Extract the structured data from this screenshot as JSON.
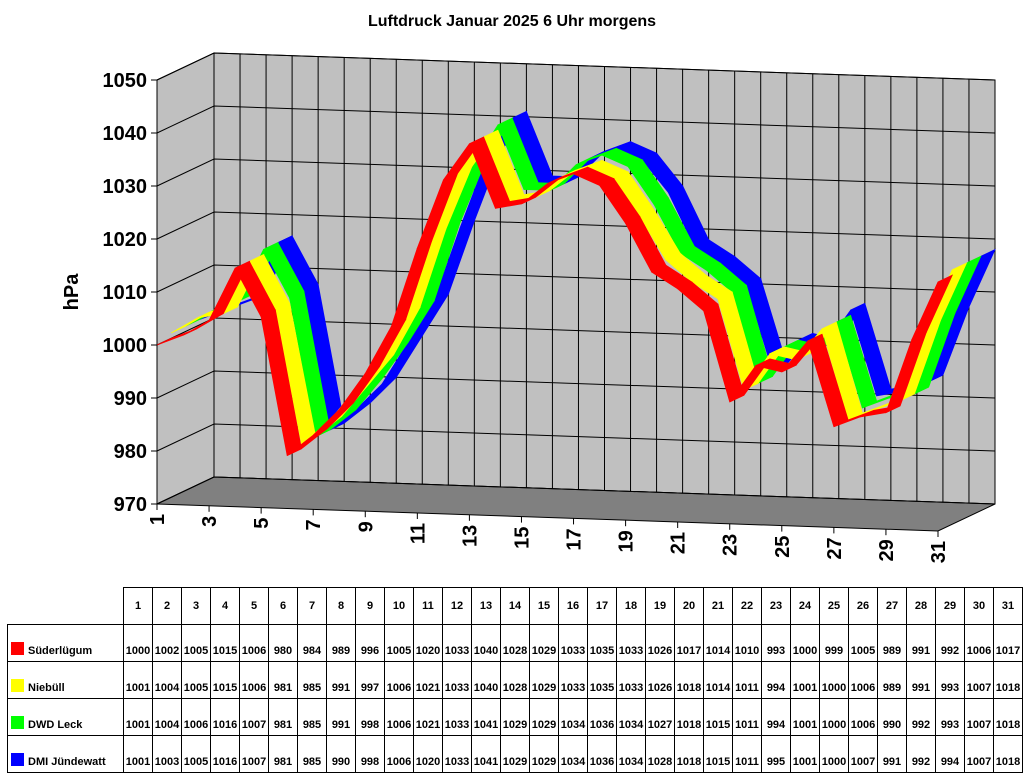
{
  "chart_data": {
    "type": "area",
    "title": "Luftdruck Januar 2025 6 Uhr morgens",
    "ylabel": "hPa",
    "xlabel": "",
    "ylim": [
      970,
      1050
    ],
    "yticks": [
      "970",
      "980",
      "990",
      "1000",
      "1010",
      "1020",
      "1030",
      "1040",
      "1050"
    ],
    "categories": [
      "1",
      "2",
      "3",
      "4",
      "5",
      "6",
      "7",
      "8",
      "9",
      "10",
      "11",
      "12",
      "13",
      "14",
      "15",
      "16",
      "17",
      "18",
      "19",
      "20",
      "21",
      "22",
      "23",
      "24",
      "25",
      "26",
      "27",
      "28",
      "29",
      "30",
      "31"
    ],
    "xtick_labels": [
      "1",
      "3",
      "5",
      "7",
      "9",
      "11",
      "13",
      "15",
      "17",
      "19",
      "21",
      "23",
      "25",
      "27",
      "29",
      "31"
    ],
    "grid": true,
    "legend": "table-bottom",
    "series": [
      {
        "name": "Süderlügum",
        "color": "#ff0000",
        "values": [
          1000,
          1002,
          1005,
          1015,
          1006,
          980,
          984,
          989,
          996,
          1005,
          1020,
          1033,
          1040,
          1028,
          1029,
          1033,
          1035,
          1033,
          1026,
          1017,
          1014,
          1010,
          993,
          1000,
          999,
          1005,
          989,
          991,
          992,
          1006,
          1017
        ]
      },
      {
        "name": "Niebüll",
        "color": "#ffff00",
        "values": [
          1001,
          1004,
          1005,
          1015,
          1006,
          981,
          985,
          991,
          997,
          1006,
          1021,
          1033,
          1040,
          1028,
          1029,
          1033,
          1035,
          1033,
          1026,
          1018,
          1014,
          1011,
          994,
          1001,
          1000,
          1006,
          989,
          991,
          993,
          1007,
          1018
        ]
      },
      {
        "name": "DWD Leck",
        "color": "#00ff00",
        "values": [
          1001,
          1004,
          1006,
          1016,
          1007,
          981,
          985,
          991,
          998,
          1006,
          1021,
          1033,
          1041,
          1029,
          1029,
          1034,
          1036,
          1034,
          1027,
          1018,
          1015,
          1011,
          994,
          1001,
          1000,
          1006,
          990,
          992,
          993,
          1007,
          1018
        ]
      },
      {
        "name": "DMI Jündewatt",
        "color": "#0000ff",
        "values": [
          1001,
          1003,
          1005,
          1016,
          1007,
          981,
          985,
          990,
          998,
          1006,
          1020,
          1033,
          1041,
          1029,
          1029,
          1034,
          1036,
          1034,
          1028,
          1018,
          1015,
          1011,
          995,
          1001,
          1000,
          1007,
          991,
          992,
          994,
          1007,
          1018
        ]
      }
    ]
  }
}
